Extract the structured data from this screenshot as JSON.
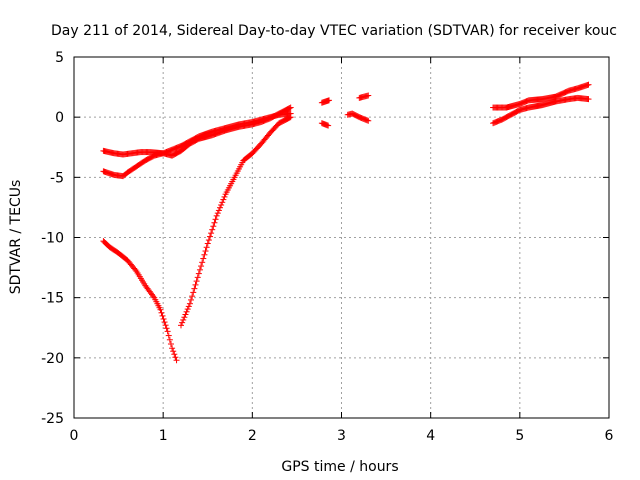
{
  "chart_data": {
    "type": "scatter",
    "title": "Day 211 of 2014, Sidereal Day-to-day VTEC variation (SDTVAR) for receiver kouc",
    "xlabel": "GPS time / hours",
    "ylabel": "SDTVAR / TECUs",
    "xlim": [
      0,
      6
    ],
    "ylim": [
      -25,
      5
    ],
    "x_ticks": [
      0,
      1,
      2,
      3,
      4,
      5,
      6
    ],
    "y_ticks": [
      -25,
      -20,
      -15,
      -10,
      -5,
      0,
      5
    ],
    "grid": true,
    "marker": "+",
    "color": "#ff0000",
    "segments": [
      [
        [
          0.33,
          -10.3
        ],
        [
          0.4,
          -10.8
        ],
        [
          0.5,
          -11.3
        ],
        [
          0.6,
          -11.9
        ],
        [
          0.7,
          -12.8
        ],
        [
          0.8,
          -14.0
        ],
        [
          0.9,
          -15.0
        ],
        [
          0.97,
          -16.0
        ],
        [
          1.05,
          -17.8
        ],
        [
          1.1,
          -19.2
        ],
        [
          1.15,
          -20.2
        ]
      ],
      [
        [
          1.2,
          -17.3
        ],
        [
          1.3,
          -15.5
        ],
        [
          1.4,
          -13.0
        ],
        [
          1.5,
          -10.5
        ],
        [
          1.6,
          -8.2
        ],
        [
          1.7,
          -6.4
        ],
        [
          1.8,
          -5.0
        ],
        [
          1.9,
          -3.6
        ],
        [
          2.0,
          -3.0
        ],
        [
          2.1,
          -2.2
        ],
        [
          2.2,
          -1.3
        ],
        [
          2.3,
          -0.5
        ],
        [
          2.43,
          0.0
        ]
      ],
      [
        [
          0.33,
          -2.8
        ],
        [
          0.45,
          -3.0
        ],
        [
          0.55,
          -3.1
        ],
        [
          0.65,
          -3.0
        ],
        [
          0.75,
          -2.9
        ],
        [
          0.85,
          -2.9
        ],
        [
          1.0,
          -3.0
        ],
        [
          1.1,
          -3.2
        ],
        [
          1.2,
          -2.8
        ],
        [
          1.3,
          -2.2
        ],
        [
          1.4,
          -1.8
        ],
        [
          1.55,
          -1.5
        ],
        [
          1.7,
          -1.1
        ],
        [
          1.85,
          -0.8
        ],
        [
          2.0,
          -0.6
        ],
        [
          2.1,
          -0.4
        ],
        [
          2.2,
          -0.1
        ],
        [
          2.3,
          0.3
        ],
        [
          2.43,
          0.8
        ]
      ],
      [
        [
          0.33,
          -4.5
        ],
        [
          0.45,
          -4.8
        ],
        [
          0.55,
          -4.9
        ],
        [
          0.6,
          -4.6
        ],
        [
          0.7,
          -4.1
        ],
        [
          0.8,
          -3.6
        ],
        [
          0.9,
          -3.2
        ],
        [
          1.0,
          -3.0
        ],
        [
          1.1,
          -2.7
        ],
        [
          1.2,
          -2.4
        ],
        [
          1.3,
          -2.0
        ],
        [
          1.4,
          -1.6
        ],
        [
          1.55,
          -1.2
        ],
        [
          1.7,
          -0.9
        ],
        [
          1.85,
          -0.6
        ],
        [
          2.0,
          -0.4
        ],
        [
          2.15,
          -0.1
        ],
        [
          2.3,
          0.2
        ],
        [
          2.43,
          0.3
        ]
      ],
      [
        [
          2.78,
          1.2
        ],
        [
          2.86,
          1.4
        ]
      ],
      [
        [
          2.78,
          -0.5
        ],
        [
          2.85,
          -0.7
        ]
      ],
      [
        [
          3.07,
          0.2
        ],
        [
          3.12,
          0.3
        ],
        [
          3.2,
          0.0
        ],
        [
          3.3,
          -0.3
        ]
      ],
      [
        [
          3.2,
          1.6
        ],
        [
          3.3,
          1.8
        ]
      ],
      [
        [
          4.7,
          0.8
        ],
        [
          4.85,
          0.8
        ],
        [
          5.0,
          1.1
        ],
        [
          5.1,
          1.4
        ],
        [
          5.25,
          1.5
        ],
        [
          5.4,
          1.7
        ],
        [
          5.55,
          2.2
        ],
        [
          5.65,
          2.4
        ],
        [
          5.77,
          2.7
        ]
      ],
      [
        [
          4.7,
          -0.5
        ],
        [
          4.8,
          -0.2
        ],
        [
          4.9,
          0.2
        ],
        [
          5.0,
          0.6
        ],
        [
          5.1,
          0.8
        ],
        [
          5.25,
          1.0
        ],
        [
          5.4,
          1.3
        ],
        [
          5.55,
          1.5
        ],
        [
          5.65,
          1.6
        ],
        [
          5.77,
          1.5
        ]
      ]
    ]
  }
}
